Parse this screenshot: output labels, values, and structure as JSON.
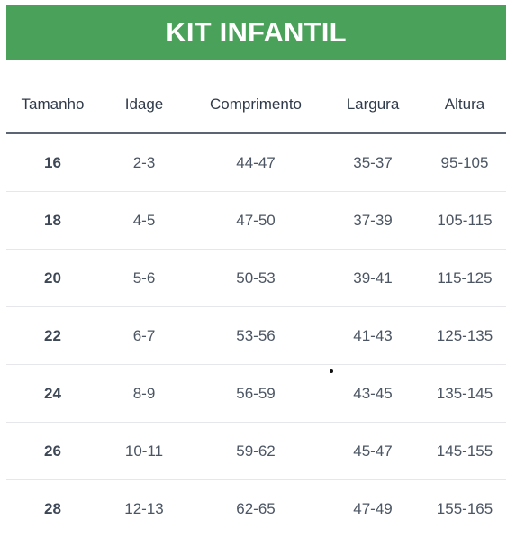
{
  "title": "KIT INFANTIL",
  "table": {
    "headers": [
      "Tamanho",
      "Idage",
      "Comprimento",
      "Largura",
      "Altura"
    ],
    "rows": [
      [
        "16",
        "2-3",
        "44-47",
        "35-37",
        "95-105"
      ],
      [
        "18",
        "4-5",
        "47-50",
        "37-39",
        "105-115"
      ],
      [
        "20",
        "5-6",
        "50-53",
        "39-41",
        "115-125"
      ],
      [
        "22",
        "6-7",
        "53-56",
        "41-43",
        "125-135"
      ],
      [
        "24",
        "8-9",
        "56-59",
        "43-45",
        "135-145"
      ],
      [
        "26",
        "10-11",
        "59-62",
        "45-47",
        "145-155"
      ],
      [
        "28",
        "12-13",
        "62-65",
        "47-49",
        "155-165"
      ]
    ]
  },
  "colors": {
    "banner_bg": "#4aa15a",
    "banner_text": "#ffffff",
    "header_rule": "#5b6573",
    "row_divider": "#e5e7ea"
  }
}
